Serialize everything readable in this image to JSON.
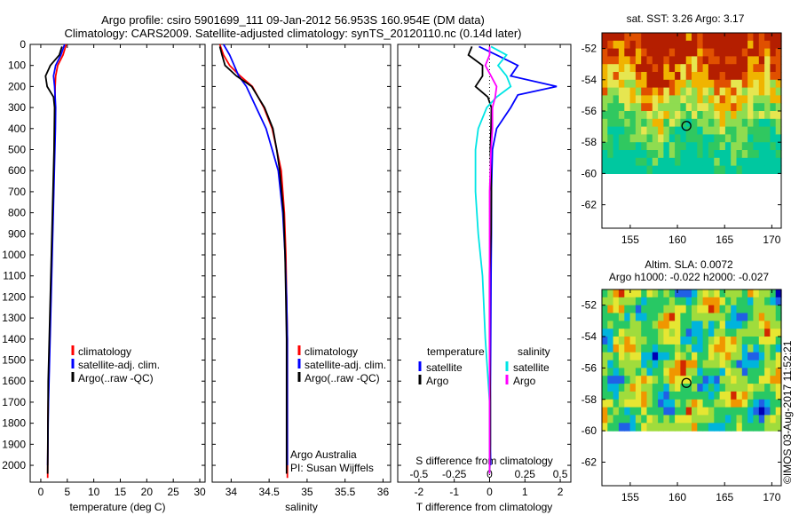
{
  "header": {
    "line1": "Argo profile: csiro 5901699_111 09-Jan-2012 56.953S 160.954E (DM data)",
    "line2": "Climatology: CARS2009. Satellite-adjusted climatology: synTS_20120110.nc (0.14d later)"
  },
  "credit": "©IMOS 03-Aug-2017 11:52:21",
  "colors": {
    "climatology": "#ff0000",
    "satellite": "#0000ff",
    "argo": "#000000",
    "sat_s": "#00e5e5",
    "argo_s": "#ff00ff"
  },
  "chart_data": [
    {
      "id": "temperature",
      "type": "line",
      "xlabel": "temperature (deg C)",
      "ylabel": "",
      "xlim": [
        -2,
        31
      ],
      "ylim": [
        2080,
        0
      ],
      "xticks": [
        0,
        5,
        10,
        15,
        20,
        25,
        30
      ],
      "yticks": [
        0,
        100,
        200,
        300,
        400,
        500,
        600,
        700,
        800,
        900,
        1000,
        1100,
        1200,
        1300,
        1400,
        1500,
        1600,
        1700,
        1800,
        1900,
        2000
      ],
      "legend": [
        "climatology",
        "satellite-adj. clim.",
        "Argo(..raw -QC)"
      ],
      "legend_position": "center",
      "series": [
        {
          "name": "climatology",
          "color": "#ff0000",
          "x": [
            4.8,
            4.2,
            3.2,
            2.8,
            2.7,
            2.65,
            2.6,
            2.55,
            2.5,
            2.4,
            2.3,
            2.2,
            2.1,
            2.0,
            1.9,
            1.8,
            1.7,
            1.6,
            1.5,
            1.4,
            1.35,
            1.3
          ],
          "y": [
            0,
            50,
            100,
            150,
            200,
            300,
            400,
            500,
            600,
            700,
            800,
            900,
            1000,
            1100,
            1200,
            1300,
            1400,
            1500,
            1600,
            1700,
            1800,
            2060
          ]
        },
        {
          "name": "satellite-adj. clim.",
          "color": "#0000ff",
          "x": [
            4.5,
            3.8,
            2.8,
            2.4,
            2.6,
            2.8,
            2.75,
            2.65,
            2.55,
            2.45,
            2.35,
            2.25,
            2.15,
            2.05,
            1.95,
            1.85,
            1.75,
            1.65,
            1.55,
            1.45,
            1.38,
            1.3
          ],
          "y": [
            0,
            50,
            100,
            150,
            200,
            300,
            400,
            500,
            600,
            700,
            800,
            900,
            1000,
            1100,
            1200,
            1300,
            1400,
            1500,
            1600,
            1700,
            1800,
            2000
          ]
        },
        {
          "name": "Argo(..raw -QC)",
          "color": "#000000",
          "x": [
            4.0,
            3.5,
            1.8,
            0.9,
            1.2,
            2.4,
            2.6,
            2.55,
            2.5,
            2.4,
            2.3,
            2.2,
            2.1,
            2.0,
            1.9,
            1.8,
            1.7,
            1.6,
            1.5,
            1.4,
            1.35,
            1.3
          ],
          "y": [
            10,
            50,
            100,
            150,
            200,
            250,
            300,
            400,
            500,
            600,
            700,
            800,
            900,
            1000,
            1100,
            1200,
            1300,
            1400,
            1500,
            1600,
            1800,
            2040
          ]
        }
      ]
    },
    {
      "id": "salinity",
      "type": "line",
      "xlabel": "salinity",
      "ylabel": "",
      "xlim": [
        33.75,
        36.1
      ],
      "ylim": [
        2080,
        0
      ],
      "xticks": [
        34,
        34.5,
        35,
        35.5,
        36
      ],
      "legend": [
        "climatology",
        "satellite-adj. clim.",
        "Argo(..raw -QC)"
      ],
      "legend_position": "center",
      "annotation": [
        "Argo Australia",
        "PI: Susan Wijffels"
      ],
      "series": [
        {
          "name": "climatology",
          "color": "#ff0000",
          "x": [
            33.85,
            33.9,
            33.98,
            34.12,
            34.28,
            34.43,
            34.54,
            34.6,
            34.66,
            34.7,
            34.72,
            34.73,
            34.74,
            34.74,
            34.74,
            34.74,
            34.74,
            34.74
          ],
          "y": [
            0,
            50,
            100,
            150,
            200,
            300,
            400,
            500,
            600,
            800,
            1000,
            1200,
            1400,
            1600,
            1800,
            1900,
            2000,
            2060
          ]
        },
        {
          "name": "satellite-adj. clim.",
          "color": "#0000ff",
          "x": [
            33.9,
            33.98,
            34.04,
            34.1,
            34.2,
            34.33,
            34.46,
            34.54,
            34.62,
            34.68,
            34.71,
            34.73,
            34.74,
            34.74,
            34.74,
            34.74,
            34.74
          ],
          "y": [
            0,
            50,
            100,
            150,
            200,
            300,
            400,
            500,
            600,
            800,
            1000,
            1200,
            1400,
            1600,
            1800,
            1900,
            2000
          ]
        },
        {
          "name": "Argo(..raw -QC)",
          "color": "#000000",
          "x": [
            33.85,
            33.88,
            33.92,
            34.07,
            34.27,
            34.44,
            34.55,
            34.6,
            34.64,
            34.69,
            34.71,
            34.72,
            34.73,
            34.73,
            34.73,
            34.73
          ],
          "y": [
            10,
            50,
            100,
            150,
            200,
            300,
            400,
            500,
            600,
            800,
            1000,
            1200,
            1400,
            1600,
            1800,
            2040
          ]
        }
      ]
    },
    {
      "id": "differences",
      "type": "line",
      "xlabel": "T difference from climatology",
      "top_axis_label": "S difference from climatology",
      "xlim": [
        -2.6,
        2.3
      ],
      "ylim": [
        2080,
        0
      ],
      "xticks": [
        -2,
        -1,
        0,
        1,
        2
      ],
      "top_ticks": [
        "-0.5",
        "-0.25",
        "0",
        "0.25",
        "0.5"
      ],
      "top_tick_values": [
        -0.5,
        -0.25,
        0,
        0.25,
        0.5
      ],
      "legend_groups": [
        {
          "title": "temperature",
          "entries": [
            "satellite",
            "Argo"
          ]
        },
        {
          "title": "salinity",
          "entries": [
            "satellite",
            "Argo"
          ]
        }
      ],
      "legend_position": "center",
      "series": [
        {
          "name": "satellite",
          "group": "temperature",
          "color": "#0000ff",
          "x": [
            -0.3,
            0.2,
            0.8,
            0.6,
            1.9,
            0.8,
            0.6,
            0.2,
            0.08,
            0.05,
            0.05,
            0.04,
            0.03,
            0.02,
            0.02,
            0.03
          ],
          "y": [
            10,
            50,
            100,
            150,
            200,
            240,
            300,
            400,
            500,
            700,
            900,
            1100,
            1400,
            1700,
            1900,
            2000
          ]
        },
        {
          "name": "Argo",
          "group": "temperature",
          "color": "#000000",
          "x": [
            -0.5,
            -0.6,
            -0.2,
            -0.2,
            -0.4,
            -0.05,
            0.05,
            0.04,
            0.02,
            0.05,
            0.04,
            0.0,
            0.0,
            0.02,
            0.02,
            0.0
          ],
          "y": [
            10,
            50,
            100,
            150,
            200,
            250,
            300,
            400,
            500,
            700,
            900,
            1100,
            1400,
            1700,
            1900,
            2040
          ]
        },
        {
          "name": "satellite",
          "group": "salinity",
          "color": "#00e5e5",
          "x": [
            0.01,
            0.12,
            0.06,
            0.12,
            0.15,
            0.05,
            -0.02,
            -0.08,
            -0.1,
            -0.1,
            -0.08,
            -0.05,
            -0.03,
            0.0,
            0.0,
            0.0
          ],
          "y": [
            10,
            50,
            100,
            150,
            200,
            250,
            300,
            400,
            500,
            700,
            900,
            1100,
            1400,
            1700,
            1900,
            2040
          ]
        },
        {
          "name": "Argo",
          "group": "salinity",
          "color": "#ff00ff",
          "x": [
            0.0,
            0.0,
            -0.03,
            0.01,
            0.05,
            0.04,
            0.02,
            0.02,
            0.01,
            0.0,
            0.0,
            0.0,
            0.0,
            0.0,
            0.0,
            0.0
          ],
          "y": [
            10,
            50,
            100,
            150,
            200,
            250,
            300,
            400,
            500,
            700,
            900,
            1100,
            1400,
            1700,
            1900,
            2040
          ]
        }
      ]
    },
    {
      "id": "sst_map",
      "type": "heatmap",
      "title": "sat. SST: 3.26 Argo: 3.17",
      "xlim": [
        152,
        171
      ],
      "ylim": [
        -63.5,
        -51
      ],
      "xticks": [
        155,
        160,
        165,
        170
      ],
      "yticks": [
        -52,
        -54,
        -56,
        -58,
        -60,
        -62
      ],
      "data_lat_range": [
        -60,
        -51
      ],
      "marker": {
        "lon": 160.954,
        "lat": -56.953
      }
    },
    {
      "id": "sla_map",
      "type": "heatmap",
      "title": "Altim. SLA: 0.0072",
      "subtitle": "Argo h1000: -0.022 h2000: -0.027",
      "xlim": [
        152,
        171
      ],
      "ylim": [
        -63.5,
        -51
      ],
      "xticks": [
        155,
        160,
        165,
        170
      ],
      "yticks": [
        -52,
        -54,
        -56,
        -58,
        -60,
        -62
      ],
      "data_lat_range": [
        -60,
        -51
      ],
      "marker": {
        "lon": 160.954,
        "lat": -56.953
      }
    }
  ]
}
